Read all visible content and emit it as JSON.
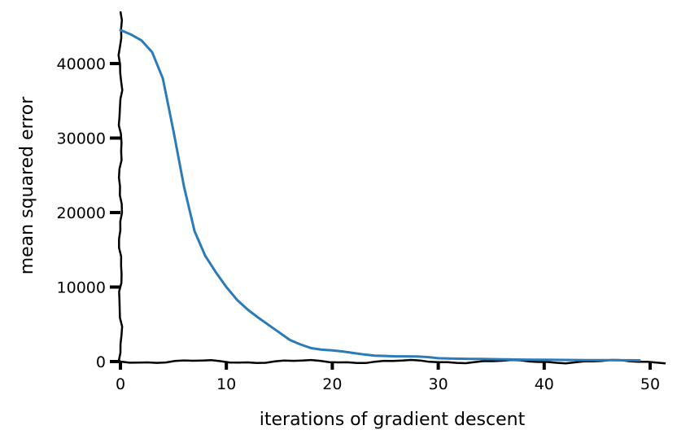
{
  "chart_data": {
    "type": "line",
    "title": "",
    "xlabel": "iterations of gradient descent",
    "ylabel": "mean squared error",
    "xlim": [
      0,
      51
    ],
    "ylim": [
      0,
      47000
    ],
    "x_ticks": [
      0,
      10,
      20,
      30,
      40,
      50
    ],
    "y_ticks": [
      0,
      10000,
      20000,
      30000,
      40000
    ],
    "grid": false,
    "line_color": "#2b7bb9",
    "series": [
      {
        "x": [
          0,
          1,
          2,
          3,
          4,
          5,
          6,
          7,
          8,
          9,
          10,
          11,
          12,
          13,
          14,
          15,
          16,
          17,
          18,
          19,
          20,
          21,
          22,
          23,
          24,
          25,
          26,
          27,
          28,
          29,
          30,
          31,
          32,
          33,
          34,
          35,
          36,
          37,
          38,
          39,
          40,
          41,
          42,
          43,
          44,
          45,
          46,
          47,
          48,
          49
        ],
        "values": [
          44500,
          43900,
          43100,
          41500,
          38000,
          31000,
          23500,
          17500,
          14200,
          12000,
          10000,
          8300,
          7000,
          5900,
          4900,
          3900,
          2900,
          2300,
          1800,
          1600,
          1500,
          1350,
          1150,
          950,
          800,
          750,
          700,
          700,
          680,
          600,
          450,
          400,
          380,
          350,
          350,
          330,
          300,
          280,
          260,
          250,
          240,
          230,
          220,
          210,
          200,
          200,
          190,
          180,
          170,
          160
        ]
      }
    ]
  }
}
